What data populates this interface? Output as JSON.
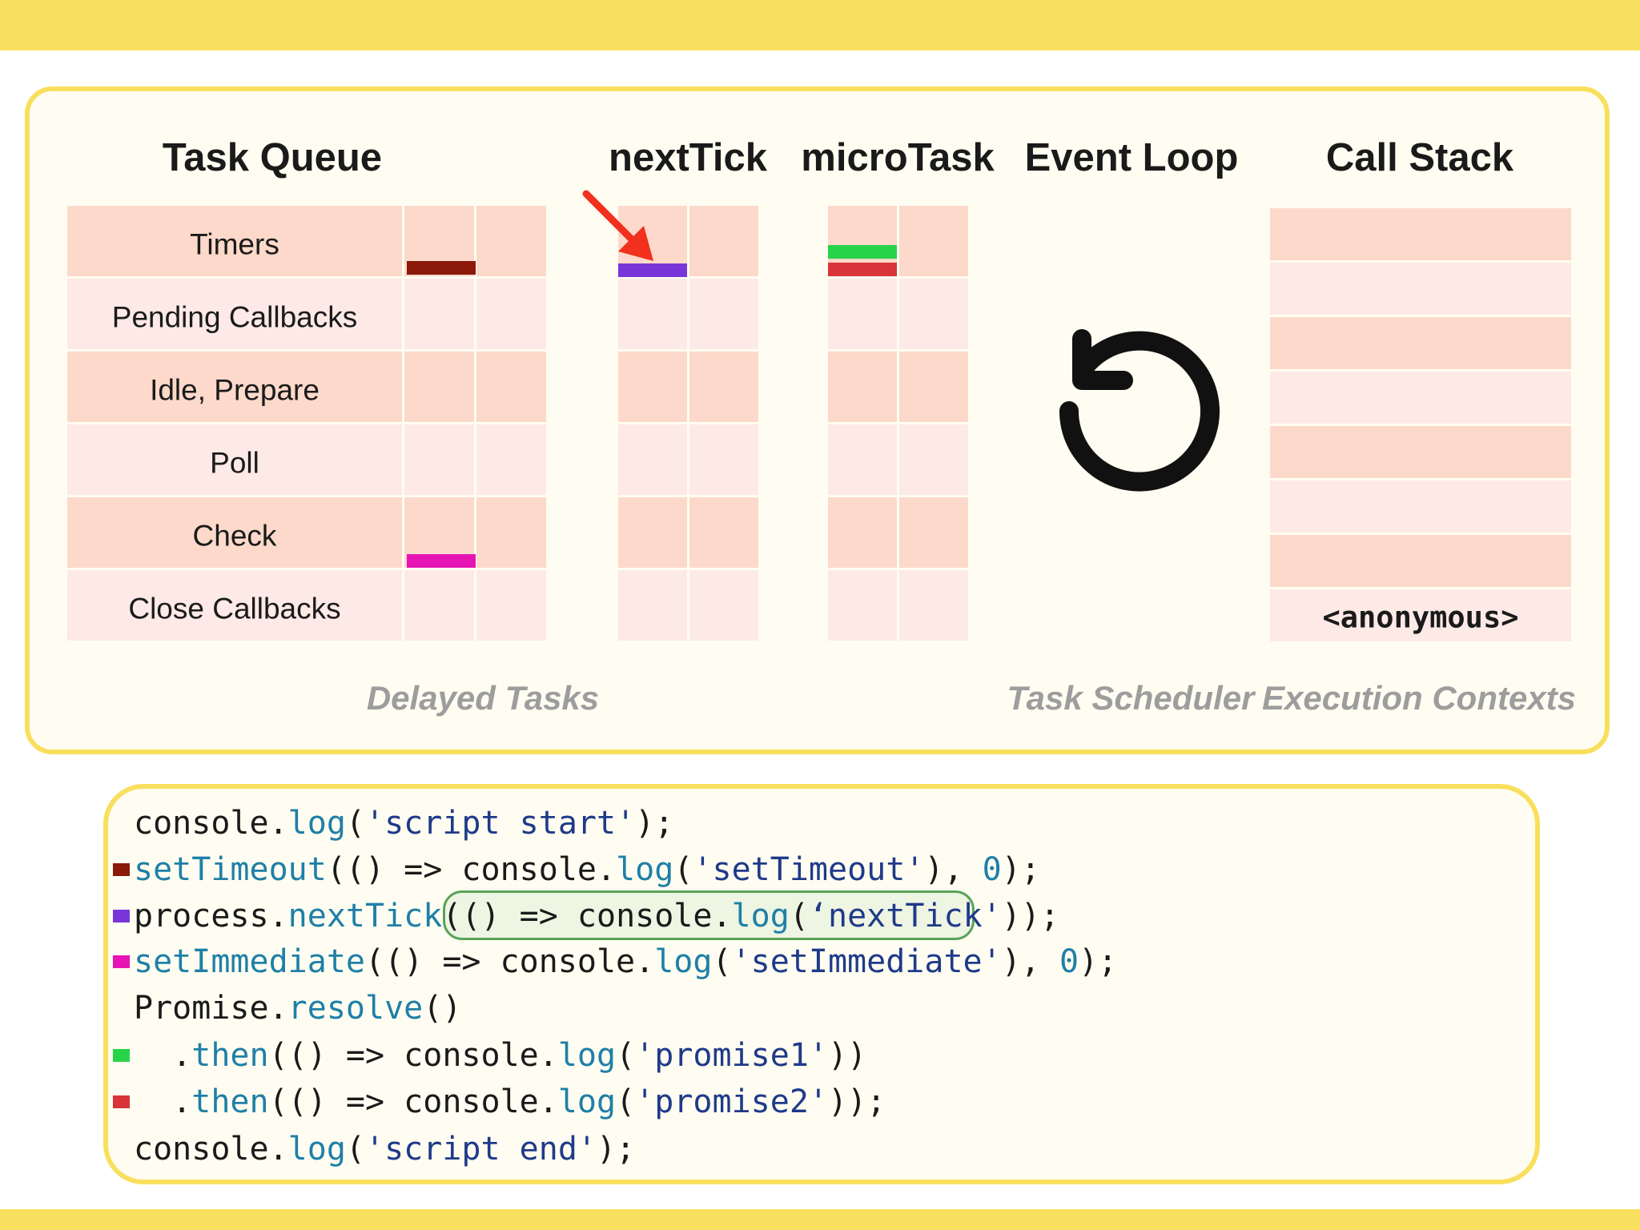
{
  "headings": {
    "task_queue": "Task Queue",
    "next_tick": "nextTick",
    "micro_task": "microTask",
    "event_loop": "Event Loop",
    "call_stack": "Call Stack"
  },
  "task_queue": {
    "phases": [
      "Timers",
      "Pending Callbacks",
      "Idle, Prepare",
      "Poll",
      "Check",
      "Close Callbacks"
    ]
  },
  "call_stack": {
    "top_frame": "<anonymous>"
  },
  "captions": {
    "delayed": "Delayed Tasks",
    "scheduler": "Task Scheduler",
    "contexts": "Execution Contexts"
  },
  "code": {
    "l1": [
      "console",
      ".",
      "log",
      "(",
      "'script start'",
      ");"
    ],
    "l2": [
      "setTimeout",
      "(() => console.",
      "log",
      "(",
      "'setTimeout'",
      "), ",
      "0",
      ");"
    ],
    "l3": [
      "process.",
      "nextTick",
      "(",
      "() => console.",
      "log",
      "(",
      "‘nextTick'",
      ")",
      ");"
    ],
    "l4": [
      "setImmediate",
      "(() => console.",
      "log",
      "(",
      "'setImmediate'",
      "), ",
      "0",
      ");"
    ],
    "l5": [
      "Promise.",
      "resolve",
      "()"
    ],
    "l6": [
      "  .",
      "then",
      "(() => console.",
      "log",
      "(",
      "'promise1'",
      "))"
    ],
    "l7": [
      "  .",
      "then",
      "(() => console.",
      "log",
      "(",
      "'promise2'",
      "));"
    ],
    "l8": [
      "console.",
      "log",
      "(",
      "'script end'",
      ");"
    ]
  },
  "colors": {
    "timeout": "#8b1a0a",
    "next_tick": "#7a35d8",
    "immediate": "#e614b4",
    "promise1": "#27d348",
    "promise2": "#d8343a",
    "arrow": "#f2301e",
    "accent_yellow": "#f9df5e"
  },
  "icons": {
    "event_loop": "rotate-ccw-icon",
    "pointer": "red-arrow-icon"
  }
}
